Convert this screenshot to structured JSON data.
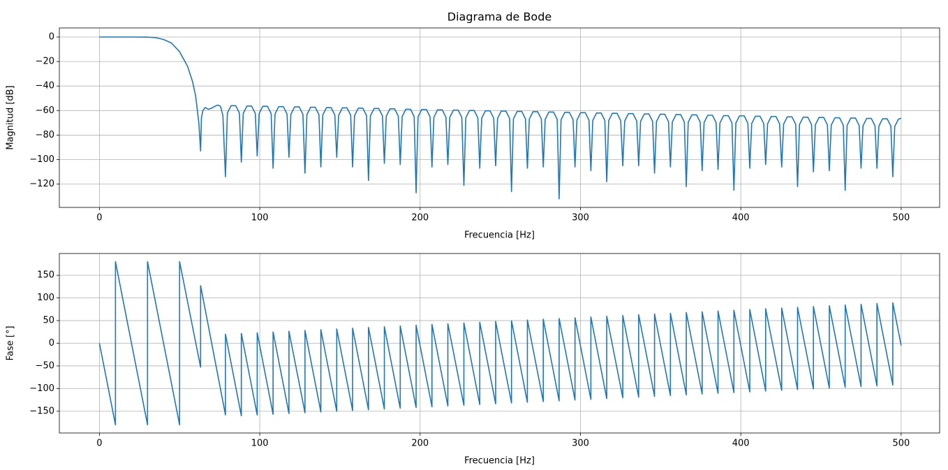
{
  "chart_data": [
    {
      "type": "line",
      "title": "Diagrama de Bode",
      "xlabel": "Frecuencia [Hz]",
      "ylabel": "Magnitud [dB]",
      "color": "#1f77b4",
      "grid": true,
      "xlim": [
        -25,
        524
      ],
      "ylim": [
        -139,
        7.4
      ],
      "xticks": [
        0,
        100,
        200,
        300,
        400,
        500
      ],
      "yticks": [
        0,
        {
          "value": -20,
          "label": "−20"
        },
        {
          "value": -40,
          "label": "−40"
        },
        {
          "value": -60,
          "label": "−60"
        },
        {
          "value": -80,
          "label": "−80"
        },
        {
          "value": -100,
          "label": "−100"
        },
        {
          "value": -120,
          "label": "−120"
        }
      ],
      "x": [
        0,
        10,
        20,
        30,
        35,
        40,
        45,
        50,
        55,
        58,
        60,
        62,
        63.1,
        63.6,
        64.5,
        66,
        68,
        70,
        72,
        74,
        75.5,
        77,
        78.6,
        79.8,
        82.1,
        85.0,
        87.3,
        88.5,
        89.7,
        92.0,
        94.9,
        97.2,
        98.4,
        99.6,
        101.9,
        104.8,
        107.1,
        108.3,
        109.5,
        111.8,
        114.7,
        117.0,
        118.2,
        119.4,
        121.7,
        124.6,
        126.9,
        128.2,
        129.4,
        131.7,
        134.6,
        136.9,
        138.1,
        139.3,
        141.6,
        144.5,
        146.8,
        148.0,
        149.2,
        151.5,
        154.4,
        156.7,
        157.9,
        159.1,
        161.4,
        164.3,
        166.6,
        167.8,
        169.0,
        171.3,
        174.2,
        176.5,
        177.7,
        178.9,
        181.2,
        184.1,
        186.4,
        187.6,
        188.8,
        191.1,
        194.0,
        196.3,
        197.5,
        198.7,
        201.0,
        203.9,
        206.2,
        207.4,
        208.6,
        210.9,
        213.8,
        216.1,
        217.3,
        218.5,
        220.8,
        223.7,
        226.0,
        227.3,
        228.5,
        230.8,
        233.7,
        236.0,
        237.2,
        238.4,
        240.7,
        243.6,
        245.9,
        247.1,
        248.3,
        250.6,
        253.5,
        255.8,
        257.0,
        258.2,
        260.5,
        263.4,
        265.7,
        266.9,
        268.1,
        270.4,
        273.3,
        275.6,
        276.8,
        278.0,
        280.3,
        283.2,
        285.5,
        286.7,
        287.9,
        290.2,
        293.1,
        295.4,
        296.6,
        297.8,
        300.1,
        303.0,
        305.3,
        306.5,
        307.7,
        310.0,
        312.9,
        315.2,
        316.4,
        317.6,
        319.9,
        322.8,
        325.1,
        326.4,
        327.6,
        329.9,
        332.8,
        335.1,
        336.3,
        337.5,
        339.8,
        342.7,
        345.0,
        346.2,
        347.4,
        349.7,
        352.6,
        354.9,
        356.1,
        357.3,
        359.6,
        362.5,
        364.8,
        366.0,
        367.2,
        369.5,
        372.4,
        374.7,
        375.9,
        377.1,
        379.4,
        382.3,
        384.6,
        385.8,
        387.0,
        389.3,
        392.2,
        394.5,
        395.7,
        396.9,
        399.2,
        402.1,
        404.4,
        405.6,
        406.8,
        409.1,
        412.0,
        414.3,
        415.5,
        416.7,
        419.0,
        421.9,
        424.2,
        425.5,
        426.7,
        429.0,
        431.9,
        434.2,
        435.4,
        436.6,
        438.9,
        441.8,
        444.1,
        445.3,
        446.5,
        448.8,
        451.7,
        454.0,
        455.2,
        456.4,
        458.7,
        461.6,
        463.9,
        465.1,
        466.3,
        468.6,
        471.5,
        473.8,
        475.0,
        476.2,
        478.5,
        481.4,
        483.7,
        484.9,
        486.1,
        488.4,
        491.3,
        493.6,
        494.8,
        496.0,
        498.3,
        500
      ],
      "values": [
        0,
        0,
        0,
        -0.1,
        -0.5,
        -2,
        -5,
        -12,
        -24,
        -36,
        -48,
        -70,
        -93,
        -66,
        -60,
        -57.5,
        -59,
        -58,
        -56.5,
        -55.5,
        -56.5,
        -64,
        -114,
        -62,
        -56,
        -56,
        -62,
        -102,
        -62.3,
        -56.3,
        -56.3,
        -62.3,
        -97,
        -62.5,
        -56.5,
        -56.5,
        -62.5,
        -107,
        -62.8,
        -56.8,
        -56.8,
        -62.8,
        -98,
        -63,
        -57,
        -57,
        -63,
        -111,
        -63.3,
        -57.3,
        -57.3,
        -63.3,
        -106,
        -63.6,
        -57.6,
        -57.6,
        -63.6,
        -98,
        -63.8,
        -57.8,
        -57.8,
        -63.8,
        -106,
        -64.1,
        -58.1,
        -58.1,
        -64.1,
        -117,
        -64.3,
        -58.3,
        -58.3,
        -64.3,
        -103,
        -64.6,
        -58.6,
        -58.6,
        -64.6,
        -104,
        -64.9,
        -58.9,
        -58.9,
        -64.9,
        -127,
        -65.1,
        -59.1,
        -59.1,
        -65.1,
        -106,
        -65.4,
        -59.4,
        -59.4,
        -65.4,
        -104,
        -65.6,
        -59.6,
        -59.6,
        -65.6,
        -121,
        -65.9,
        -59.9,
        -59.9,
        -65.9,
        -107,
        -66.2,
        -60.2,
        -60.2,
        -66.2,
        -105,
        -66.4,
        -60.4,
        -60.4,
        -66.4,
        -126,
        -66.7,
        -60.7,
        -60.7,
        -66.7,
        -107,
        -66.9,
        -60.9,
        -60.9,
        -66.9,
        -106,
        -67.2,
        -61.2,
        -61.2,
        -67.2,
        -132,
        -67.5,
        -61.5,
        -61.5,
        -67.5,
        -106,
        -67.7,
        -61.7,
        -61.7,
        -67.7,
        -109,
        -68,
        -62,
        -62,
        -68,
        -118,
        -68.2,
        -62.2,
        -62.2,
        -68.2,
        -105,
        -68.5,
        -62.5,
        -62.5,
        -68.5,
        -105,
        -68.8,
        -62.8,
        -62.8,
        -68.8,
        -111,
        -69,
        -63,
        -63,
        -69,
        -106,
        -69.3,
        -63.3,
        -63.3,
        -69.3,
        -122,
        -69.5,
        -63.5,
        -63.5,
        -69.5,
        -109,
        -69.8,
        -63.8,
        -63.8,
        -69.8,
        -108,
        -70.1,
        -64.1,
        -64.1,
        -70.1,
        -125,
        -70.3,
        -64.3,
        -64.3,
        -70.3,
        -107,
        -70.6,
        -64.6,
        -64.6,
        -70.6,
        -104,
        -70.8,
        -64.8,
        -64.8,
        -70.8,
        -106,
        -71.1,
        -65.1,
        -65.1,
        -71.1,
        -122,
        -71.4,
        -65.4,
        -65.4,
        -71.4,
        -110,
        -71.6,
        -65.6,
        -65.6,
        -71.6,
        -109,
        -71.9,
        -65.9,
        -65.9,
        -71.9,
        -125,
        -72.1,
        -66.1,
        -66.1,
        -72.1,
        -107,
        -72.4,
        -66.4,
        -66.4,
        -72.4,
        -107,
        -72.7,
        -66.7,
        -66.7,
        -72.7,
        -114,
        -73,
        -67,
        -66.2
      ]
    },
    {
      "type": "line",
      "xlabel": "Frecuencia [Hz]",
      "ylabel": "Fase [°]",
      "color": "#1f77b4",
      "grid": true,
      "xlim": [
        -25,
        524
      ],
      "ylim": [
        -198,
        198
      ],
      "xticks": [
        0,
        100,
        200,
        300,
        400,
        500
      ],
      "yticks": [
        {
          "value": -150,
          "label": "−150"
        },
        {
          "value": -100,
          "label": "−100"
        },
        {
          "value": -50,
          "label": "−50"
        },
        0,
        50,
        100,
        150
      ],
      "x": [
        0,
        10,
        10,
        30,
        30,
        50,
        50,
        63.1,
        63.1,
        78.6,
        78.6,
        88.5,
        88.5,
        98.4,
        98.4,
        108.3,
        108.3,
        118.2,
        118.2,
        128.2,
        128.2,
        138.1,
        138.1,
        148.0,
        148.0,
        157.9,
        157.9,
        167.8,
        167.8,
        177.7,
        177.7,
        187.6,
        187.6,
        197.5,
        197.5,
        207.4,
        207.4,
        217.3,
        217.3,
        227.3,
        227.3,
        237.2,
        237.2,
        247.1,
        247.1,
        257.0,
        257.0,
        266.9,
        266.9,
        276.8,
        276.8,
        286.7,
        286.7,
        296.6,
        296.6,
        306.5,
        306.5,
        316.4,
        316.4,
        326.4,
        326.4,
        336.3,
        336.3,
        346.2,
        346.2,
        356.1,
        356.1,
        366.0,
        366.0,
        375.9,
        375.9,
        385.8,
        385.8,
        395.7,
        395.7,
        405.6,
        405.6,
        415.5,
        415.5,
        425.5,
        425.5,
        435.4,
        435.4,
        445.3,
        445.3,
        455.2,
        455.2,
        465.1,
        465.1,
        475.0,
        475.0,
        484.9,
        484.9,
        494.8,
        494.8,
        500
      ],
      "values": [
        0,
        -180,
        180,
        -180,
        180,
        -180,
        180,
        -53,
        127,
        -158,
        20,
        -160,
        21.7,
        -158.3,
        23.3,
        -156.7,
        25.0,
        -155,
        26.6,
        -153.4,
        28.3,
        -151.7,
        29.9,
        -150.1,
        31.6,
        -148.4,
        33.2,
        -146.8,
        34.9,
        -145.1,
        36.5,
        -143.5,
        38.2,
        -141.8,
        39.8,
        -140.2,
        41.5,
        -138.5,
        43.1,
        -136.9,
        44.8,
        -135.2,
        46.4,
        -133.6,
        48.1,
        -131.9,
        49.7,
        -130.3,
        51.4,
        -128.6,
        53.0,
        -127,
        54.7,
        -125.3,
        56.3,
        -123.7,
        58.0,
        -122,
        59.6,
        -120.4,
        61.3,
        -118.7,
        62.9,
        -117.1,
        64.6,
        -115.4,
        66.2,
        -113.8,
        67.9,
        -112.1,
        69.5,
        -110.5,
        71.2,
        -108.8,
        72.8,
        -107.2,
        74.5,
        -105.5,
        76.1,
        -103.9,
        77.8,
        -102.2,
        79.4,
        -100.6,
        81.1,
        -98.9,
        82.7,
        -97.3,
        84.4,
        -95.6,
        86.0,
        -94,
        87.7,
        -92.3,
        89.3,
        -5
      ]
    }
  ]
}
